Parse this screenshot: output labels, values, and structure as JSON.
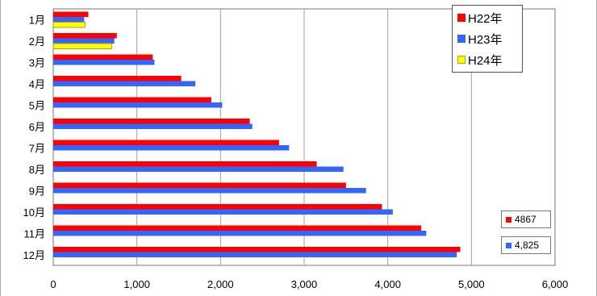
{
  "chart_data": {
    "type": "bar",
    "orientation": "horizontal",
    "categories": [
      "1月",
      "2月",
      "3月",
      "4月",
      "5月",
      "6月",
      "7月",
      "8月",
      "9月",
      "10月",
      "11月",
      "12月"
    ],
    "series": [
      {
        "name": "H22年",
        "color": "#ff0000",
        "values": [
          420,
          760,
          1190,
          1530,
          1890,
          2350,
          2700,
          3150,
          3500,
          3930,
          4400,
          4867
        ]
      },
      {
        "name": "H23年",
        "color": "#3366ff",
        "values": [
          370,
          730,
          1210,
          1700,
          2020,
          2380,
          2820,
          3470,
          3740,
          4060,
          4460,
          4825
        ]
      },
      {
        "name": "H24年",
        "color": "#ffff00",
        "values": [
          380,
          700,
          null,
          null,
          null,
          null,
          null,
          null,
          null,
          null,
          null,
          null
        ]
      }
    ],
    "xlim": [
      0,
      6000
    ],
    "x_ticks": [
      0,
      1000,
      2000,
      3000,
      4000,
      5000,
      6000
    ],
    "x_tick_labels": [
      "0",
      "1,000",
      "2,000",
      "3,000",
      "4,000",
      "5,000",
      "6,000"
    ],
    "grid": "vertical",
    "legend": "top-right",
    "callouts": [
      {
        "text": "4867",
        "series": 0
      },
      {
        "text": "4,825",
        "series": 1
      }
    ],
    "title": "",
    "xlabel": "",
    "ylabel": ""
  }
}
